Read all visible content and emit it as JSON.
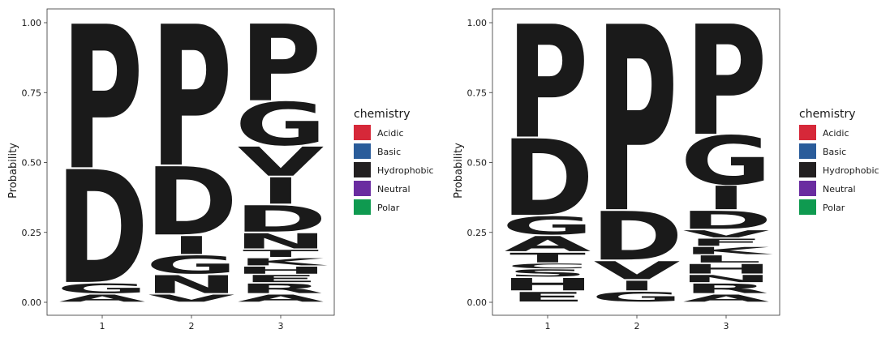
{
  "chart_data": [
    {
      "type": "sequence-logo",
      "ylabel": "Probability",
      "ylim": [
        0,
        1
      ],
      "yticks": [
        "0.00",
        "0.25",
        "0.50",
        "0.75",
        "1.00"
      ],
      "positions": [
        "1",
        "2",
        "3"
      ],
      "legend": {
        "title": "chemistry",
        "items": [
          {
            "label": "Acidic",
            "color": "#D62839"
          },
          {
            "label": "Basic",
            "color": "#2A5C9A"
          },
          {
            "label": "Hydrophobic",
            "color": "#221F20"
          },
          {
            "label": "Neutral",
            "color": "#6A2CA0"
          },
          {
            "label": "Polar",
            "color": "#0F9A50"
          }
        ]
      },
      "stacks": [
        [
          {
            "letter": "A",
            "value": 0.03,
            "chemistry": "Hydrophobic"
          },
          {
            "letter": "G",
            "value": 0.04,
            "chemistry": "Polar"
          },
          {
            "letter": "D",
            "value": 0.41,
            "chemistry": "Acidic"
          },
          {
            "letter": "P",
            "value": 0.52,
            "chemistry": "Hydrophobic"
          }
        ],
        [
          {
            "letter": "V",
            "value": 0.03,
            "chemistry": "Hydrophobic"
          },
          {
            "letter": "N",
            "value": 0.07,
            "chemistry": "Neutral"
          },
          {
            "letter": "G",
            "value": 0.07,
            "chemistry": "Polar"
          },
          {
            "letter": "I",
            "value": 0.07,
            "chemistry": "Hydrophobic"
          },
          {
            "letter": "D",
            "value": 0.25,
            "chemistry": "Acidic"
          },
          {
            "letter": "P",
            "value": 0.51,
            "chemistry": "Hydrophobic"
          }
        ],
        [
          {
            "letter": "A",
            "value": 0.03,
            "chemistry": "Hydrophobic"
          },
          {
            "letter": "R",
            "value": 0.04,
            "chemistry": "Basic"
          },
          {
            "letter": "E",
            "value": 0.03,
            "chemistry": "Acidic"
          },
          {
            "letter": "H",
            "value": 0.03,
            "chemistry": "Basic"
          },
          {
            "letter": "K",
            "value": 0.03,
            "chemistry": "Basic"
          },
          {
            "letter": "T",
            "value": 0.03,
            "chemistry": "Polar"
          },
          {
            "letter": "N",
            "value": 0.06,
            "chemistry": "Neutral"
          },
          {
            "letter": "D",
            "value": 0.1,
            "chemistry": "Acidic"
          },
          {
            "letter": "I",
            "value": 0.1,
            "chemistry": "Hydrophobic"
          },
          {
            "letter": "V",
            "value": 0.11,
            "chemistry": "Hydrophobic"
          },
          {
            "letter": "G",
            "value": 0.16,
            "chemistry": "Polar"
          },
          {
            "letter": "P",
            "value": 0.28,
            "chemistry": "Hydrophobic"
          }
        ]
      ]
    },
    {
      "type": "sequence-logo",
      "ylabel": "Probability",
      "ylim": [
        0,
        1
      ],
      "yticks": [
        "0.00",
        "0.25",
        "0.50",
        "0.75",
        "1.00"
      ],
      "positions": [
        "1",
        "2",
        "3"
      ],
      "legend": {
        "title": "chemistry",
        "items": [
          {
            "label": "Acidic",
            "color": "#D62839"
          },
          {
            "label": "Basic",
            "color": "#2A5C9A"
          },
          {
            "label": "Hydrophobic",
            "color": "#221F20"
          },
          {
            "label": "Neutral",
            "color": "#6A2CA0"
          },
          {
            "label": "Polar",
            "color": "#0F9A50"
          }
        ]
      },
      "stacks": [
        [
          {
            "letter": "E",
            "value": 0.04,
            "chemistry": "Acidic"
          },
          {
            "letter": "H",
            "value": 0.05,
            "chemistry": "Basic"
          },
          {
            "letter": "S",
            "value": 0.03,
            "chemistry": "Polar"
          },
          {
            "letter": "C",
            "value": 0.02,
            "chemistry": "Polar"
          },
          {
            "letter": "T",
            "value": 0.04,
            "chemistry": "Polar"
          },
          {
            "letter": "A",
            "value": 0.06,
            "chemistry": "Hydrophobic"
          },
          {
            "letter": "G",
            "value": 0.07,
            "chemistry": "Polar"
          },
          {
            "letter": "D",
            "value": 0.28,
            "chemistry": "Acidic"
          },
          {
            "letter": "P",
            "value": 0.41,
            "chemistry": "Hydrophobic"
          }
        ],
        [
          {
            "letter": "G",
            "value": 0.04,
            "chemistry": "Polar"
          },
          {
            "letter": "I",
            "value": 0.04,
            "chemistry": "Hydrophobic"
          },
          {
            "letter": "V",
            "value": 0.07,
            "chemistry": "Hydrophobic"
          },
          {
            "letter": "D",
            "value": 0.18,
            "chemistry": "Acidic"
          },
          {
            "letter": "P",
            "value": 0.67,
            "chemistry": "Hydrophobic"
          }
        ],
        [
          {
            "letter": "A",
            "value": 0.03,
            "chemistry": "Hydrophobic"
          },
          {
            "letter": "R",
            "value": 0.04,
            "chemistry": "Basic"
          },
          {
            "letter": "N",
            "value": 0.03,
            "chemistry": "Neutral"
          },
          {
            "letter": "H",
            "value": 0.04,
            "chemistry": "Basic"
          },
          {
            "letter": "L",
            "value": 0.03,
            "chemistry": "Hydrophobic"
          },
          {
            "letter": "K",
            "value": 0.03,
            "chemistry": "Basic"
          },
          {
            "letter": "F",
            "value": 0.03,
            "chemistry": "Hydrophobic"
          },
          {
            "letter": "V",
            "value": 0.03,
            "chemistry": "Hydrophobic"
          },
          {
            "letter": "D",
            "value": 0.07,
            "chemistry": "Acidic"
          },
          {
            "letter": "I",
            "value": 0.09,
            "chemistry": "Hydrophobic"
          },
          {
            "letter": "G",
            "value": 0.18,
            "chemistry": "Polar"
          },
          {
            "letter": "P",
            "value": 0.4,
            "chemistry": "Hydrophobic"
          }
        ]
      ]
    }
  ]
}
